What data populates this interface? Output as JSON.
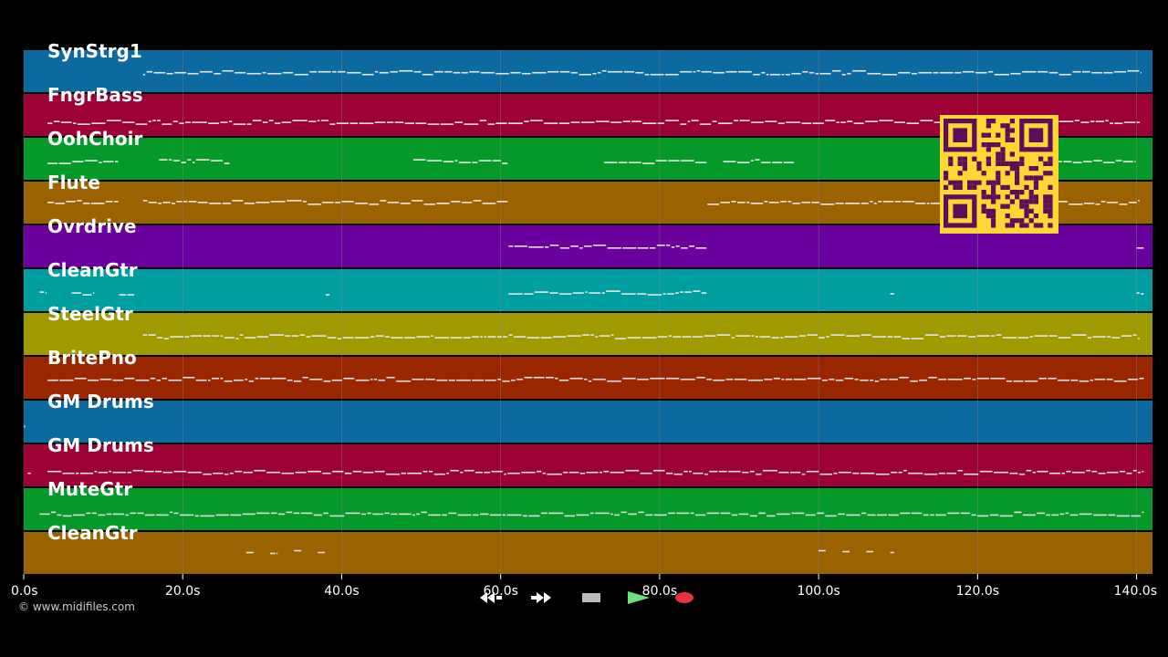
{
  "player": {
    "copyright": "© www.midifiles.com",
    "colors": {
      "background": "#000000",
      "note": "#e6e6e6",
      "grid": "#8a8a8a",
      "qr_bg": "#ffd633",
      "qr_fg": "#5a0f5a"
    },
    "transport": [
      {
        "name": "rewind-button",
        "icon": "rewind-icon",
        "bg": "#111111"
      },
      {
        "name": "fast-forward-button",
        "icon": "fast-forward-icon",
        "bg": "#111111"
      },
      {
        "name": "stop-button",
        "icon": "stop-icon",
        "bg": "#444444"
      },
      {
        "name": "play-button",
        "icon": "play-icon",
        "bg": "#1f8a2a"
      },
      {
        "name": "record-button",
        "icon": "record-icon",
        "bg": "#7a1020"
      }
    ]
  },
  "chart_data": {
    "type": "piano-roll",
    "x_range": [
      0,
      142
    ],
    "x_ticks": [
      "0.0s",
      "20.0s",
      "40.0s",
      "60.0s",
      "80.0s",
      "100.0s",
      "120.0s",
      "140.0s"
    ],
    "tracks": [
      {
        "name": "SynStrg1",
        "color": "#0d6aa0",
        "segments": [
          [
            15,
            140.5
          ]
        ],
        "pitch": 0.52
      },
      {
        "name": "FngrBass",
        "color": "#9c0035",
        "segments": [
          [
            3,
            140.5
          ]
        ],
        "pitch": 0.66
      },
      {
        "name": "OohChoir",
        "color": "#05992a",
        "segments": [
          [
            3,
            12
          ],
          [
            17,
            26
          ],
          [
            49,
            61
          ],
          [
            73,
            86
          ],
          [
            88,
            97
          ],
          [
            130,
            140
          ]
        ],
        "pitch": 0.55
      },
      {
        "name": "Flute",
        "color": "#9a6200",
        "segments": [
          [
            3,
            12
          ],
          [
            15,
            61
          ],
          [
            86,
            140.5
          ]
        ],
        "pitch": 0.48
      },
      {
        "name": "Ovrdrive",
        "color": "#6a009e",
        "segments": [
          [
            61,
            86
          ],
          [
            140,
            141
          ]
        ],
        "pitch": 0.5
      },
      {
        "name": "CleanGtr",
        "color": "#009ea0",
        "segments": [
          [
            2,
            3
          ],
          [
            6,
            9
          ],
          [
            12,
            14
          ],
          [
            38,
            38.6
          ],
          [
            61,
            86
          ],
          [
            109,
            109.6
          ],
          [
            140,
            141
          ]
        ],
        "pitch": 0.55
      },
      {
        "name": "SteelGtr",
        "color": "#9e9a00",
        "segments": [
          [
            15,
            140.5
          ]
        ],
        "pitch": 0.55
      },
      {
        "name": "BritePno",
        "color": "#9a2600",
        "segments": [
          [
            3,
            141
          ]
        ],
        "pitch": 0.52
      },
      {
        "name": "GM Drums",
        "color": "#0d6aa0",
        "segments": [
          [
            0,
            0.3
          ]
        ],
        "pitch": 0.6
      },
      {
        "name": "GM Drums",
        "color": "#9c0035",
        "segments": [
          [
            0.5,
            1
          ],
          [
            3,
            141
          ]
        ],
        "pitch": 0.65
      },
      {
        "name": "MuteGtr",
        "color": "#05992a",
        "segments": [
          [
            2,
            141
          ]
        ],
        "pitch": 0.6
      },
      {
        "name": "CleanGtr",
        "color": "#9a6200",
        "segments": [
          [
            28,
            29
          ],
          [
            31,
            32
          ],
          [
            34,
            35
          ],
          [
            37,
            38
          ],
          [
            100,
            101
          ],
          [
            103,
            104
          ],
          [
            106,
            107
          ],
          [
            109,
            109.6
          ]
        ],
        "pitch": 0.45
      }
    ]
  }
}
